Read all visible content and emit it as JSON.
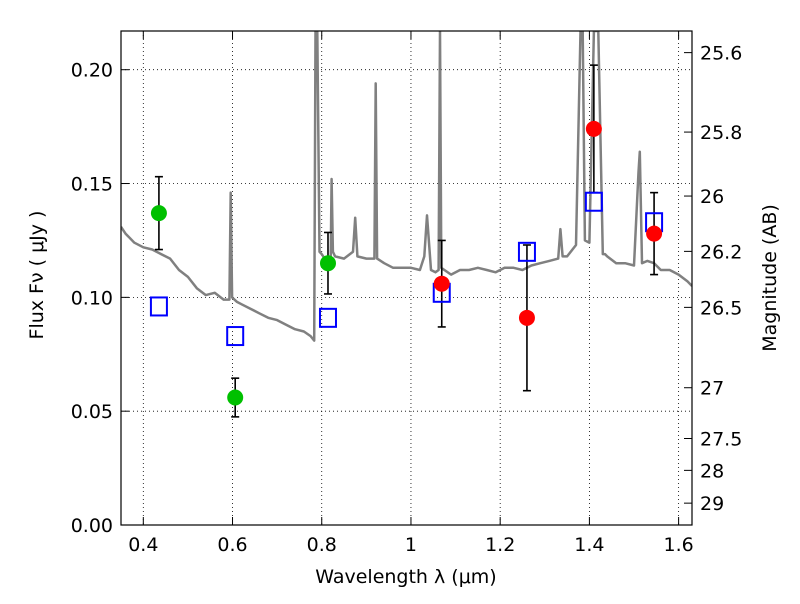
{
  "chart_data": {
    "type": "scatter",
    "xlabel": "Wavelength  λ (μm)",
    "ylabel": "Flux  Fν  ( μJy )",
    "y2label": "Magnitude (AB)",
    "xlim": [
      0.35,
      1.63
    ],
    "ylim": [
      0.0,
      0.217
    ],
    "grid": true,
    "colors": {
      "spectrum": "#808080",
      "green_points": "#00c000",
      "red_points": "#ff0000",
      "model_squares": "#0000ff",
      "error_bars": "#000000"
    },
    "x_ticks": [
      {
        "value": 0.4,
        "label": "0.4"
      },
      {
        "value": 0.6,
        "label": "0.6"
      },
      {
        "value": 0.8,
        "label": "0.8"
      },
      {
        "value": 1.0,
        "label": "1"
      },
      {
        "value": 1.2,
        "label": "1.2"
      },
      {
        "value": 1.4,
        "label": "1.4"
      },
      {
        "value": 1.6,
        "label": "1.6"
      }
    ],
    "y_ticks": [
      {
        "value": 0.0,
        "label": "0.00"
      },
      {
        "value": 0.05,
        "label": "0.05"
      },
      {
        "value": 0.1,
        "label": "0.10"
      },
      {
        "value": 0.15,
        "label": "0.15"
      },
      {
        "value": 0.2,
        "label": "0.20"
      }
    ],
    "y2_ticks": [
      {
        "flux": 0.2075,
        "label": "25.6"
      },
      {
        "flux": 0.1726,
        "label": "25.8"
      },
      {
        "flux": 0.1445,
        "label": "26"
      },
      {
        "flux": 0.1202,
        "label": "26.2"
      },
      {
        "flux": 0.0956,
        "label": "26.5"
      },
      {
        "flux": 0.0603,
        "label": "27"
      },
      {
        "flux": 0.038,
        "label": "27.5"
      },
      {
        "flux": 0.024,
        "label": "28"
      },
      {
        "flux": 0.0096,
        "label": "29"
      }
    ],
    "series": [
      {
        "marker": "circle",
        "color": "#00c000",
        "points": [
          {
            "x": 0.435,
            "y": 0.137,
            "err": 0.016
          },
          {
            "x": 0.606,
            "y": 0.056,
            "err": 0.0085
          },
          {
            "x": 0.814,
            "y": 0.115,
            "err": 0.0135
          }
        ]
      },
      {
        "marker": "circle",
        "color": "#ff0000",
        "points": [
          {
            "x": 1.069,
            "y": 0.106,
            "err": 0.019
          },
          {
            "x": 1.26,
            "y": 0.091,
            "err": 0.032
          },
          {
            "x": 1.41,
            "y": 0.174,
            "err": 0.028
          },
          {
            "x": 1.545,
            "y": 0.128,
            "err": 0.018
          }
        ]
      },
      {
        "marker": "open-square",
        "color": "#0000ff",
        "points": [
          {
            "x": 0.435,
            "y": 0.096
          },
          {
            "x": 0.606,
            "y": 0.083
          },
          {
            "x": 0.814,
            "y": 0.091
          },
          {
            "x": 1.069,
            "y": 0.102
          },
          {
            "x": 1.26,
            "y": 0.12
          },
          {
            "x": 1.41,
            "y": 0.142
          },
          {
            "x": 1.545,
            "y": 0.133
          }
        ]
      },
      {
        "marker": "line",
        "color": "#808080",
        "x": [
          0.35,
          0.36,
          0.38,
          0.4,
          0.42,
          0.44,
          0.46,
          0.48,
          0.5,
          0.52,
          0.54,
          0.56,
          0.58,
          0.593,
          0.596,
          0.599,
          0.61,
          0.62,
          0.64,
          0.66,
          0.68,
          0.7,
          0.72,
          0.74,
          0.76,
          0.775,
          0.783,
          0.786,
          0.79,
          0.795,
          0.8,
          0.81,
          0.82,
          0.822,
          0.825,
          0.83,
          0.85,
          0.87,
          0.875,
          0.88,
          0.9,
          0.918,
          0.921,
          0.924,
          0.94,
          0.96,
          0.98,
          1.0,
          1.02,
          1.03,
          1.036,
          1.045,
          1.055,
          1.062,
          1.065,
          1.068,
          1.075,
          1.09,
          1.11,
          1.13,
          1.15,
          1.17,
          1.19,
          1.21,
          1.23,
          1.25,
          1.27,
          1.29,
          1.31,
          1.33,
          1.335,
          1.34,
          1.35,
          1.37,
          1.38,
          1.385,
          1.39,
          1.4,
          1.41,
          1.42,
          1.43,
          1.435,
          1.44,
          1.46,
          1.48,
          1.5,
          1.51,
          1.513,
          1.518,
          1.53,
          1.545,
          1.56,
          1.58,
          1.6,
          1.62,
          1.63
        ],
        "y": [
          0.131,
          0.128,
          0.124,
          0.122,
          0.121,
          0.119,
          0.117,
          0.112,
          0.109,
          0.104,
          0.101,
          0.102,
          0.099,
          0.099,
          0.146,
          0.1,
          0.098,
          0.097,
          0.095,
          0.093,
          0.091,
          0.09,
          0.088,
          0.086,
          0.085,
          0.083,
          0.081,
          0.217,
          0.217,
          0.12,
          0.119,
          0.116,
          0.117,
          0.152,
          0.12,
          0.118,
          0.117,
          0.12,
          0.135,
          0.118,
          0.117,
          0.117,
          0.194,
          0.117,
          0.115,
          0.113,
          0.113,
          0.113,
          0.112,
          0.118,
          0.136,
          0.112,
          0.111,
          0.112,
          0.217,
          0.113,
          0.112,
          0.11,
          0.112,
          0.112,
          0.113,
          0.112,
          0.111,
          0.113,
          0.113,
          0.112,
          0.114,
          0.115,
          0.116,
          0.117,
          0.13,
          0.118,
          0.118,
          0.123,
          0.217,
          0.217,
          0.125,
          0.124,
          0.217,
          0.217,
          0.119,
          0.119,
          0.118,
          0.115,
          0.115,
          0.114,
          0.155,
          0.164,
          0.115,
          0.116,
          0.115,
          0.112,
          0.112,
          0.11,
          0.107,
          0.105
        ]
      }
    ]
  }
}
